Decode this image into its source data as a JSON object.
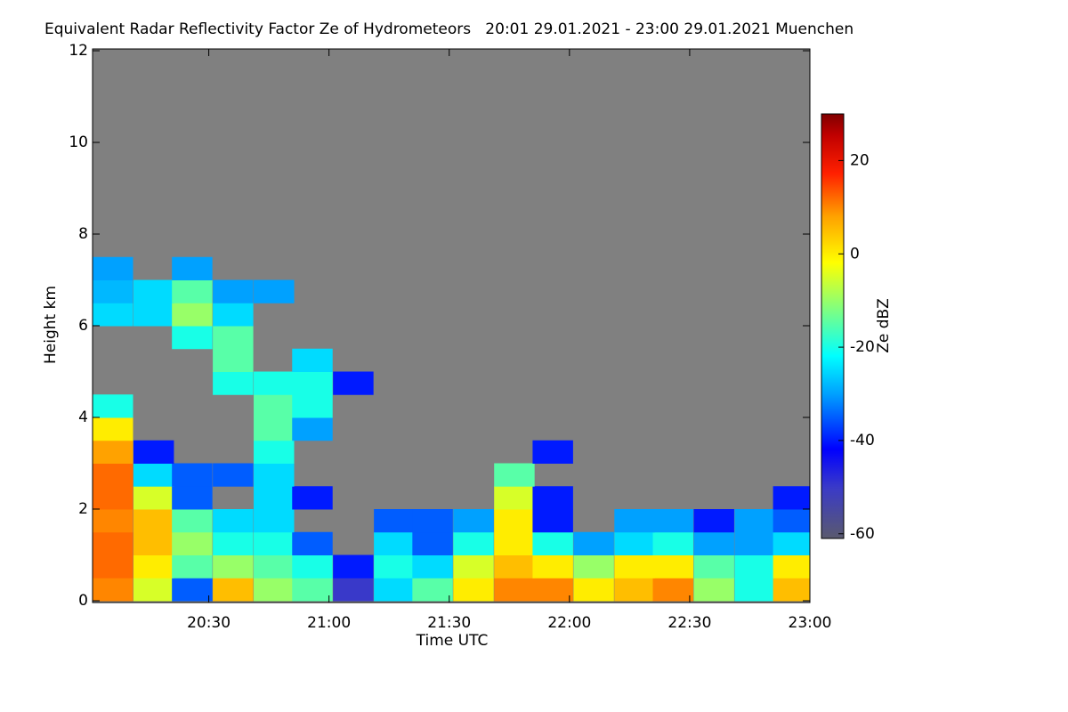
{
  "chart_data": {
    "type": "heatmap",
    "title": "Equivalent Radar Reflectivity Factor Ze of Hydrometeors   20:01 29.01.2021 - 23:00 29.01.2021 Muenchen",
    "x_label": "Time UTC",
    "y_label": "Height km",
    "colorbar_label": "Ze dBZ",
    "background": "#808080",
    "colormap": "jet-gray",
    "xlim": [
      20.0167,
      23.0
    ],
    "xticks": [
      {
        "value": 20.5,
        "label": "20:30"
      },
      {
        "value": 21.0,
        "label": "21:00"
      },
      {
        "value": 21.5,
        "label": "21:30"
      },
      {
        "value": 22.0,
        "label": "22:00"
      },
      {
        "value": 22.5,
        "label": "22:30"
      },
      {
        "value": 23.0,
        "label": "23:00"
      }
    ],
    "ylim": [
      0,
      12
    ],
    "yticks": [
      0,
      2,
      4,
      6,
      8,
      10,
      12
    ],
    "zlim": [
      -61,
      30
    ],
    "zticks": [
      -60,
      -40,
      -20,
      0,
      20
    ],
    "x": [
      20.1,
      20.27,
      20.43,
      20.6,
      20.77,
      20.93,
      21.1,
      21.27,
      21.43,
      21.6,
      21.77,
      21.93,
      22.1,
      22.27,
      22.43,
      22.6,
      22.77,
      22.93
    ],
    "y": [
      0.25,
      0.75,
      1.25,
      1.75,
      2.25,
      2.75,
      3.25,
      3.75,
      4.25,
      4.75,
      5.25,
      5.75,
      6.25,
      6.75,
      7.25
    ],
    "z": [
      [
        10,
        -5,
        -35,
        5,
        -10,
        -15,
        -50,
        -25,
        -15,
        0,
        10,
        10,
        0,
        5,
        10,
        -10,
        -20,
        5
      ],
      [
        12,
        0,
        -15,
        -10,
        -15,
        -20,
        -40,
        -20,
        -25,
        -5,
        5,
        0,
        -10,
        0,
        0,
        -15,
        -20,
        0
      ],
      [
        12,
        5,
        -10,
        -20,
        -20,
        -35,
        null,
        -25,
        -35,
        -20,
        0,
        -20,
        -30,
        -25,
        -20,
        -30,
        -30,
        -25
      ],
      [
        10,
        5,
        -15,
        -25,
        -25,
        null,
        null,
        -35,
        -35,
        -30,
        0,
        -40,
        null,
        -30,
        -30,
        -40,
        -30,
        -35
      ],
      [
        12,
        -5,
        -35,
        null,
        -25,
        -40,
        null,
        null,
        null,
        null,
        -5,
        -40,
        null,
        null,
        null,
        null,
        null,
        -40
      ],
      [
        12,
        -25,
        -35,
        -35,
        -25,
        null,
        null,
        null,
        null,
        null,
        -15,
        null,
        null,
        null,
        null,
        null,
        null,
        null
      ],
      [
        8,
        -40,
        null,
        null,
        -20,
        null,
        null,
        null,
        null,
        null,
        null,
        -40,
        null,
        null,
        null,
        null,
        null,
        null
      ],
      [
        0,
        null,
        null,
        null,
        -15,
        -30,
        null,
        null,
        null,
        null,
        null,
        null,
        null,
        null,
        null,
        null,
        null,
        null
      ],
      [
        -20,
        null,
        null,
        null,
        -15,
        -20,
        null,
        null,
        null,
        null,
        null,
        null,
        null,
        null,
        null,
        null,
        null,
        null
      ],
      [
        null,
        null,
        null,
        -20,
        -20,
        -20,
        -40,
        null,
        null,
        null,
        null,
        null,
        null,
        null,
        null,
        null,
        null,
        null
      ],
      [
        null,
        null,
        null,
        -15,
        null,
        -25,
        null,
        null,
        null,
        null,
        null,
        null,
        null,
        null,
        null,
        null,
        null,
        null
      ],
      [
        null,
        null,
        -20,
        -15,
        null,
        null,
        null,
        null,
        null,
        null,
        null,
        null,
        null,
        null,
        null,
        null,
        null,
        null
      ],
      [
        -25,
        -25,
        -10,
        -25,
        null,
        null,
        null,
        null,
        null,
        null,
        null,
        null,
        null,
        null,
        null,
        null,
        null,
        null
      ],
      [
        -28,
        -25,
        -15,
        -30,
        -30,
        null,
        null,
        null,
        null,
        null,
        null,
        null,
        null,
        null,
        null,
        null,
        null,
        null
      ],
      [
        -30,
        null,
        -30,
        null,
        null,
        null,
        null,
        null,
        null,
        null,
        null,
        null,
        null,
        null,
        null,
        null,
        null,
        null
      ]
    ]
  }
}
